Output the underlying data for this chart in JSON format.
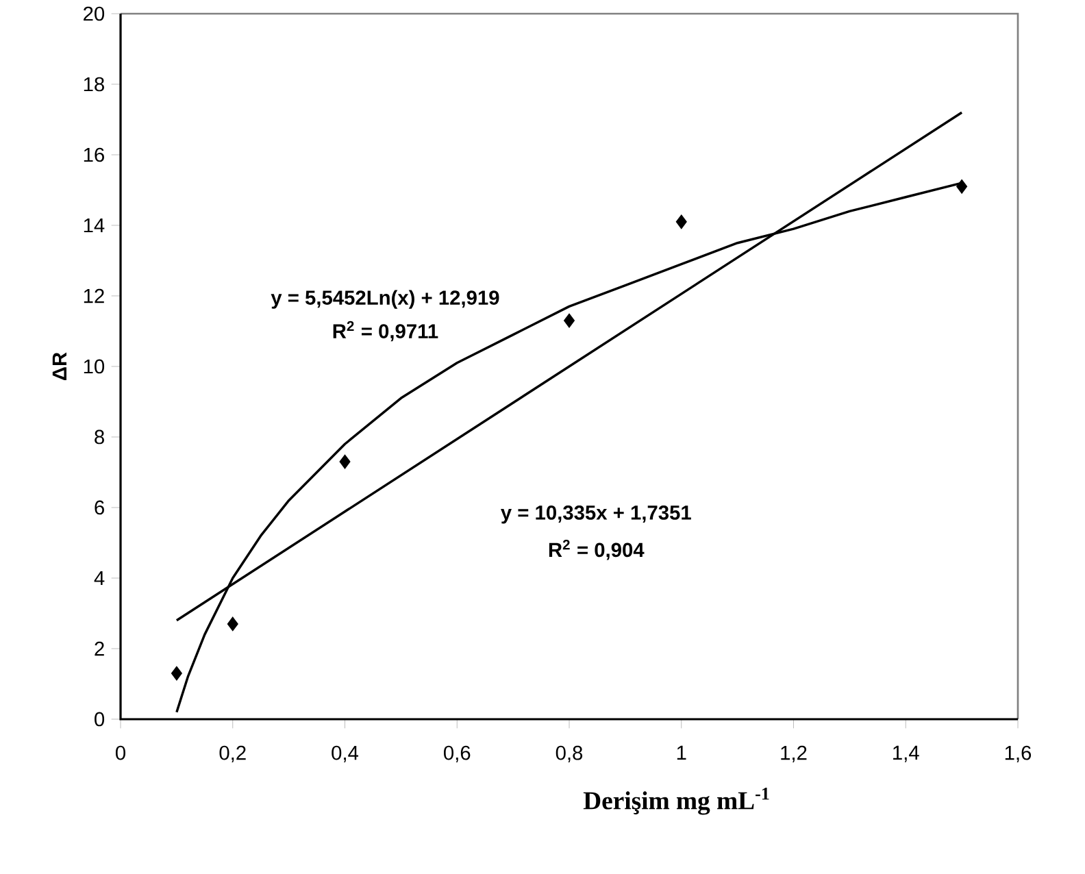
{
  "chart_data": {
    "type": "scatter",
    "xlabel": "Derişim mg mL$^{-1}$",
    "ylabel": "ΔR",
    "xlim": [
      0,
      1.6
    ],
    "ylim": [
      0,
      20
    ],
    "xticks": [
      0,
      {
        "value": 0.2,
        "label": "0,2"
      },
      {
        "value": 0.4,
        "label": "0,4"
      },
      {
        "value": 0.6,
        "label": "0,6"
      },
      {
        "value": 0.8,
        "label": "0,8"
      },
      1,
      {
        "value": 1.2,
        "label": "1,2"
      },
      {
        "value": 1.4,
        "label": "1,4"
      },
      {
        "value": 1.6,
        "label": "1,6"
      }
    ],
    "yticks": [
      0,
      2,
      4,
      6,
      8,
      10,
      12,
      14,
      16,
      18,
      20
    ],
    "annotations": [
      "y = 5,5452Ln(x) + 12,919",
      "R$^{2}$ = 0,9711",
      "y = 10,335x + 1,7351",
      "R$^{2}$ = 0,904"
    ],
    "series": [
      {
        "color": "#000000",
        "marker": "diamond",
        "x": [
          0.1,
          0.2,
          0.4,
          0.8,
          1.0,
          1.5
        ],
        "values": [
          1.3,
          2.7,
          7.3,
          11.3,
          14.1,
          15.1
        ]
      },
      {
        "type": "line",
        "color": "#000000",
        "marker": "none",
        "line_style": "solid",
        "x": [
          0.1,
          1.5
        ],
        "values": [
          2.8,
          17.2
        ]
      },
      {
        "type": "line",
        "color": "#000000",
        "marker": "none",
        "line_style": "solid",
        "x": [
          0.1,
          0.12,
          0.15,
          0.2,
          0.25,
          0.3,
          0.4,
          0.5,
          0.6,
          0.7,
          0.8,
          0.9,
          1.0,
          1.1,
          1.2,
          1.3,
          1.4,
          1.5
        ],
        "values": [
          0.2,
          1.2,
          2.4,
          4.0,
          5.2,
          6.2,
          7.8,
          9.1,
          10.1,
          10.9,
          11.7,
          12.3,
          12.9,
          13.5,
          13.9,
          14.4,
          14.8,
          15.2
        ]
      }
    ]
  }
}
